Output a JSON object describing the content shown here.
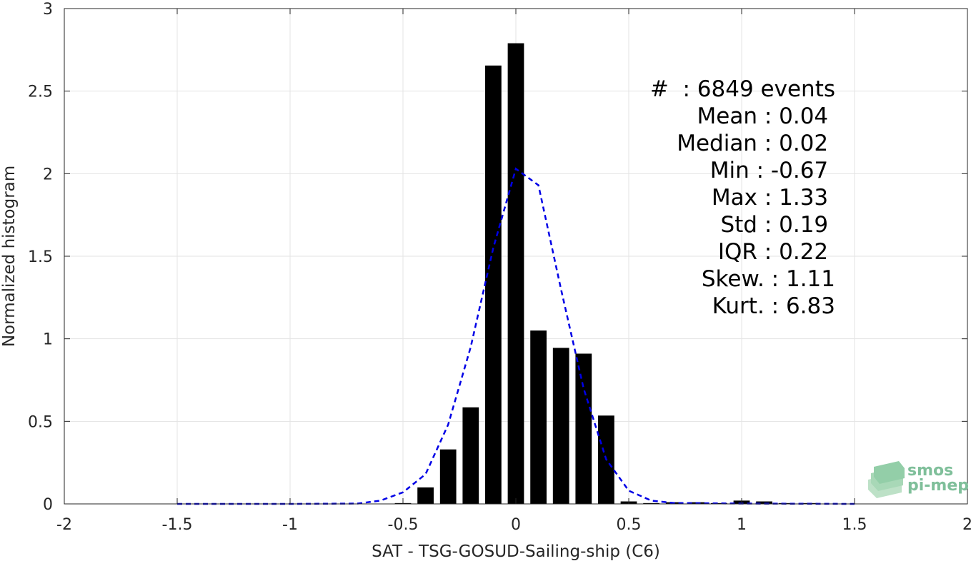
{
  "chart_data": {
    "type": "bar",
    "xlabel": "SAT - TSG-GOSUD-Sailing-ship (C6)",
    "ylabel": "Normalized histogram",
    "xlim": [
      -2,
      2
    ],
    "ylim": [
      0,
      3
    ],
    "grid": true,
    "x_ticks": [
      "-2",
      "-1.5",
      "-1",
      "-0.5",
      "0",
      "0.5",
      "1",
      "1.5",
      "2"
    ],
    "y_ticks": [
      "0",
      "0.5",
      "1",
      "1.5",
      "2",
      "2.5",
      "3"
    ],
    "bar_color": "#000000",
    "bars": {
      "x": [
        -0.5,
        -0.4,
        -0.3,
        -0.2,
        -0.1,
        0.0,
        0.1,
        0.2,
        0.3,
        0.4,
        0.5,
        0.6,
        0.7,
        0.8,
        0.9,
        1.0,
        1.1,
        1.2,
        1.3
      ],
      "values": [
        0.005,
        0.1,
        0.33,
        0.585,
        2.655,
        2.79,
        1.05,
        0.945,
        0.91,
        0.535,
        0.015,
        0.005,
        0.01,
        0.01,
        0.005,
        0.02,
        0.015,
        0.005,
        0.005
      ]
    },
    "fit_line": {
      "style": "dashed",
      "color": "#0000e6",
      "x": [
        -1.5,
        -1.0,
        -0.7,
        -0.6,
        -0.5,
        -0.4,
        -0.3,
        -0.2,
        -0.1,
        0.0,
        0.1,
        0.2,
        0.3,
        0.4,
        0.5,
        0.6,
        0.7,
        1.0,
        1.5
      ],
      "y": [
        0.0,
        0.0,
        0.002,
        0.02,
        0.07,
        0.18,
        0.48,
        0.95,
        1.55,
        2.03,
        1.93,
        1.3,
        0.7,
        0.27,
        0.08,
        0.02,
        0.005,
        0.002,
        0.0
      ]
    },
    "annotations": [
      "#  : 6849 events",
      "Mean : 0.04 ",
      "Median : 0.02 ",
      "Min : -0.67 ",
      "Max : 1.33 ",
      "Std : 0.19 ",
      "IQR : 0.22 ",
      "Skew. : 1.11",
      "Kurt. : 6.83"
    ]
  },
  "logo": {
    "line1": "smos",
    "line2": "pi-mep",
    "color": "#7fbf9a"
  }
}
